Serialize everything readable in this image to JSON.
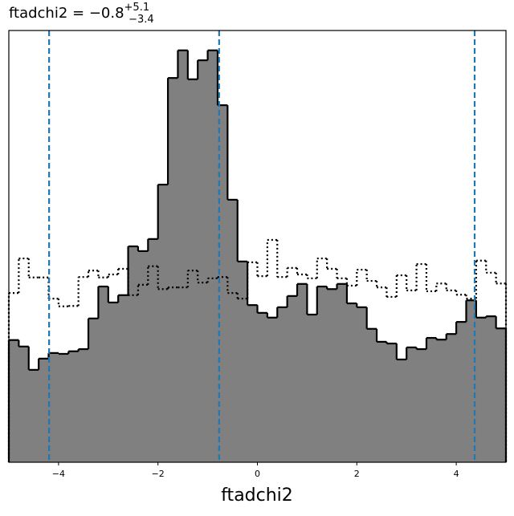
{
  "chart_data": {
    "type": "histogram",
    "title": {
      "text": "ftadchi2 = −0.8",
      "upper": "+5.1",
      "lower": "−3.4"
    },
    "x_label": "ftadchi2",
    "bins": [
      -5,
      -4.8,
      -4.6,
      -4.4,
      -4.2,
      -4,
      -3.8,
      -3.6,
      -3.4,
      -3.2,
      -3,
      -2.8,
      -2.6,
      -2.4,
      -2.2,
      -2,
      -1.8,
      -1.6,
      -1.4,
      -1.2,
      -1,
      -0.8,
      -0.6,
      -0.4,
      -0.2,
      0,
      0.2,
      0.4,
      0.6,
      0.8,
      1,
      1.2,
      1.4,
      1.6,
      1.8,
      2,
      2.2,
      2.4,
      2.6,
      2.8,
      3,
      3.2,
      3.4,
      3.6,
      3.8,
      4,
      4.2,
      4.4,
      4.6,
      4.8,
      5
    ],
    "series": [
      {
        "style": "filled",
        "color": "#808080",
        "edge_color": "#000000",
        "values": [
          28.3,
          26.8,
          21.4,
          24.0,
          25.3,
          25.1,
          25.7,
          26.2,
          33.3,
          40.7,
          37.0,
          38.7,
          50.0,
          48.9,
          51.7,
          64.3,
          89.0,
          95.4,
          88.7,
          93.1,
          95.4,
          82.7,
          60.8,
          46.5,
          36.4,
          34.6,
          33.5,
          35.9,
          38.5,
          41.3,
          34.2,
          40.7,
          40.1,
          41.3,
          36.8,
          35.9,
          30.9,
          27.9,
          27.5,
          23.8,
          26.6,
          26.2,
          28.8,
          28.4,
          29.7,
          32.5,
          37.5,
          33.5,
          33.8,
          31.0
        ]
      },
      {
        "style": "dotted",
        "color": "#000000",
        "values": [
          39.2,
          47.2,
          42.8,
          42.8,
          37.9,
          36.1,
          36.2,
          42.9,
          44.4,
          42.8,
          43.5,
          44.8,
          38.7,
          41.1,
          45.4,
          40.1,
          40.5,
          40.5,
          44.4,
          41.6,
          42.6,
          42.9,
          39.2,
          37.9,
          46.3,
          43.1,
          51.5,
          42.9,
          45.0,
          43.5,
          42.6,
          47.2,
          44.8,
          42.6,
          40.9,
          44.6,
          42.0,
          40.5,
          38.3,
          43.3,
          39.8,
          45.9,
          39.6,
          41.4,
          39.8,
          38.8,
          37.9,
          46.7,
          43.9,
          41.4
        ]
      }
    ],
    "vlines": {
      "color": "#1f77b4",
      "values": [
        -4.19,
        -0.77,
        4.37
      ]
    },
    "xlim": [
      -5,
      5
    ],
    "ylim": [
      0,
      100
    ],
    "xticks": [
      {
        "value": -4,
        "label": "−4"
      },
      {
        "value": -2,
        "label": "−2"
      },
      0,
      2,
      4
    ]
  }
}
